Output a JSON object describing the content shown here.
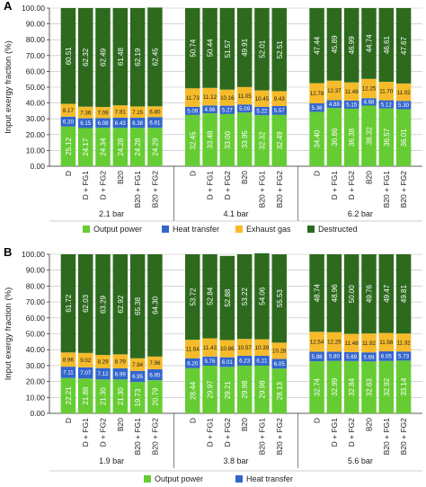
{
  "colors": {
    "output_power": "#66cc33",
    "heat_transfer": "#3366cc",
    "exhaust_gas": "#f5bb2a",
    "destructed": "#2d6a1e",
    "grid": "#bbbbbb",
    "axis": "#333333"
  },
  "chart_data": [
    {
      "panel_label": "A",
      "type": "bar",
      "stacked": true,
      "ylabel": "Input exergy fraction (%)",
      "ylim": [
        0,
        100
      ],
      "yticks": [
        "0.00",
        "10.00",
        "20.00",
        "30.00",
        "40.00",
        "50.00",
        "60.00",
        "70.00",
        "80.00",
        "90.00",
        "100.00"
      ],
      "grid": true,
      "legend": {
        "position": "bottom",
        "entries": [
          "Output power",
          "Heat transfer",
          "Exhaust gas",
          "Destructed"
        ]
      },
      "groups": [
        {
          "label": "2.1 bar",
          "categories": [
            "D",
            "D + FG1",
            "D + FG2",
            "B20",
            "B20 + FG1",
            "B20 + FG2"
          ],
          "series": [
            {
              "name": "Output power",
              "values": [
                25.12,
                24.17,
                24.34,
                24.28,
                24.28,
                24.29
              ]
            },
            {
              "name": "Heat transfer",
              "values": [
                6.2,
                6.15,
                6.08,
                6.43,
                6.38,
                6.81
              ]
            },
            {
              "name": "Exhaust gas",
              "values": [
                8.17,
                7.36,
                7.09,
                7.81,
                7.15,
                6.8
              ]
            },
            {
              "name": "Destructed",
              "values": [
                60.51,
                62.32,
                62.49,
                61.48,
                62.19,
                62.45
              ]
            }
          ]
        },
        {
          "label": "4.1 bar",
          "categories": [
            "D",
            "D + FG1",
            "D + FG2",
            "B20",
            "B20 + FG1",
            "B20 + FG2"
          ],
          "series": [
            {
              "name": "Output power",
              "values": [
                32.45,
                33.48,
                33.0,
                33.95,
                32.32,
                32.49
              ]
            },
            {
              "name": "Heat transfer",
              "values": [
                5.09,
                4.96,
                5.27,
                5.09,
                5.22,
                5.57
              ]
            },
            {
              "name": "Exhaust gas",
              "values": [
                11.73,
                11.12,
                10.16,
                11.05,
                10.45,
                9.43
              ]
            },
            {
              "name": "Destructed",
              "values": [
                50.74,
                50.44,
                51.57,
                49.91,
                52.01,
                52.51
              ]
            }
          ]
        },
        {
          "label": "6.2 bar",
          "categories": [
            "D",
            "D + FG1",
            "D + FG2",
            "B20",
            "B20 + FG1",
            "B20 + FG2"
          ],
          "series": [
            {
              "name": "Output power",
              "values": [
                34.4,
                36.86,
                36.38,
                38.32,
                36.57,
                36.01
              ]
            },
            {
              "name": "Heat transfer",
              "values": [
                5.36,
                4.88,
                5.15,
                4.68,
                5.12,
                5.3
              ]
            },
            {
              "name": "Exhaust gas",
              "values": [
                12.78,
                12.37,
                11.48,
                12.25,
                11.7,
                11.02
              ]
            },
            {
              "name": "Destructed",
              "values": [
                47.44,
                45.89,
                46.99,
                44.74,
                46.61,
                47.67
              ]
            }
          ]
        }
      ]
    },
    {
      "panel_label": "B",
      "type": "bar",
      "stacked": true,
      "ylabel": "Input exergy fraction (%)",
      "ylim": [
        0,
        100
      ],
      "yticks": [
        "0.00",
        "10.00",
        "20.00",
        "30.00",
        "40.00",
        "50.00",
        "60.00",
        "70.00",
        "80.00",
        "90.00",
        "100.00"
      ],
      "grid": true,
      "legend": {
        "position": "bottom",
        "entries": [
          "Output power",
          "Heat transfer"
        ]
      },
      "groups": [
        {
          "label": "1.9 bar",
          "categories": [
            "D",
            "D + FG1",
            "D + FG2",
            "B20",
            "B20 + FG1",
            "B20 + FG2"
          ],
          "series": [
            {
              "name": "Output power",
              "values": [
                22.21,
                21.88,
                21.3,
                21.3,
                19.73,
                20.79
              ]
            },
            {
              "name": "Heat transfer",
              "values": [
                7.11,
                7.07,
                7.12,
                6.99,
                6.95,
                6.95
              ]
            },
            {
              "name": "Exhaust gas",
              "values": [
                8.96,
                9.02,
                8.29,
                8.79,
                7.94,
                7.96
              ]
            },
            {
              "name": "Destructed",
              "values": [
                61.72,
                62.03,
                63.29,
                62.92,
                65.38,
                64.3
              ]
            }
          ]
        },
        {
          "label": "3.8 bar",
          "categories": [
            "D",
            "D + FG1",
            "D + FG2",
            "B20",
            "B20 + FG1",
            "B20 + FG2"
          ],
          "series": [
            {
              "name": "Output power",
              "values": [
                28.44,
                29.97,
                29.21,
                29.98,
                29.98,
                28.13
              ]
            },
            {
              "name": "Heat transfer",
              "values": [
                6.2,
                5.76,
                6.01,
                6.23,
                6.21,
                6.05
              ]
            },
            {
              "name": "Exhaust gas",
              "values": [
                11.64,
                11.43,
                10.86,
                10.57,
                10.39,
                10.28
              ]
            },
            {
              "name": "Destructed",
              "values": [
                53.72,
                52.84,
                52.88,
                53.22,
                54.06,
                55.53
              ]
            }
          ]
        },
        {
          "label": "5.6 bar",
          "categories": [
            "D",
            "D + FG1",
            "D + FG2",
            "B20",
            "B20 + FG1",
            "B20 + FG2"
          ],
          "series": [
            {
              "name": "Output power",
              "values": [
                32.74,
                32.99,
                32.84,
                32.63,
                32.92,
                33.14
              ]
            },
            {
              "name": "Heat transfer",
              "values": [
                5.98,
                5.8,
                5.69,
                5.69,
                6.05,
                5.73
              ]
            },
            {
              "name": "Exhaust gas",
              "values": [
                12.54,
                12.25,
                11.48,
                11.92,
                11.56,
                11.32
              ]
            },
            {
              "name": "Destructed",
              "values": [
                48.74,
                48.96,
                50.0,
                49.76,
                49.47,
                49.81
              ]
            }
          ]
        }
      ]
    }
  ]
}
